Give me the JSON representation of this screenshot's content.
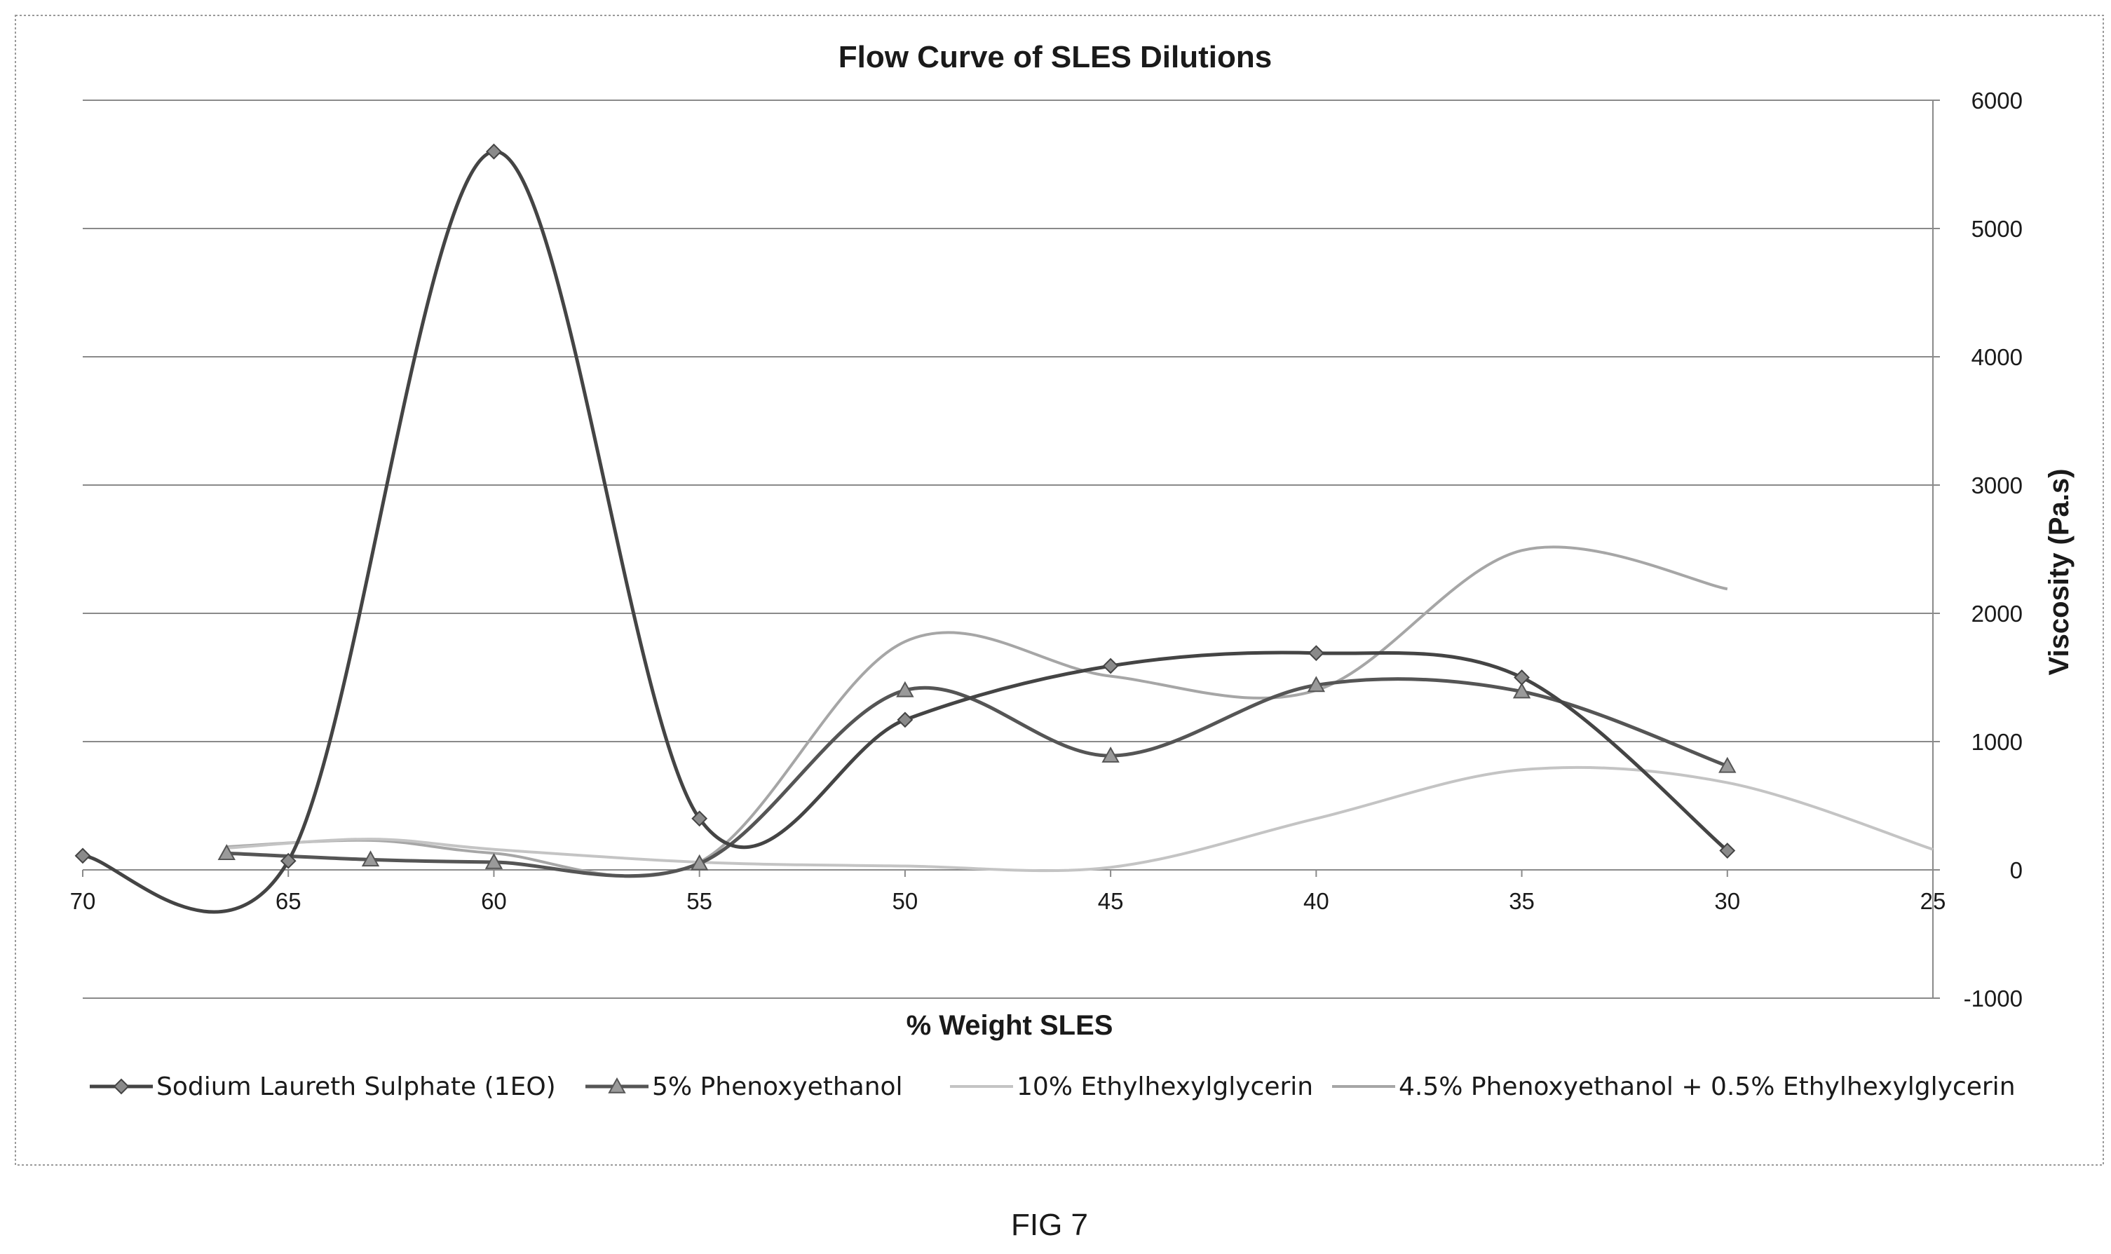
{
  "figure_label": "FIG 7",
  "chart_data": {
    "type": "line",
    "title": "Flow Curve of SLES Dilutions",
    "xlabel": "% Weight SLES",
    "ylabel": "Viscosity (Pa.s)",
    "xlim": [
      70,
      25
    ],
    "x_reversed": true,
    "ylim": [
      -1000,
      6000
    ],
    "y_axis_side": "right",
    "x_ticks": [
      "70",
      "65",
      "60",
      "55",
      "50",
      "45",
      "40",
      "35",
      "30",
      "25"
    ],
    "y_ticks": [
      "-1000",
      "0",
      "1000",
      "2000",
      "3000",
      "4000",
      "5000",
      "6000"
    ],
    "grid": "horizontal",
    "legend_position": "bottom",
    "smoothed": true,
    "series": [
      {
        "name": "Sodium Laureth Sulphate (1EO)",
        "marker": "diamond",
        "color": "#444444",
        "points": [
          [
            70,
            110
          ],
          [
            65,
            70
          ],
          [
            60,
            5600
          ],
          [
            55,
            400
          ],
          [
            50,
            1170
          ],
          [
            45,
            1590
          ],
          [
            40,
            1690
          ],
          [
            35,
            1500
          ],
          [
            30,
            150
          ]
        ]
      },
      {
        "name": "5% Phenoxyethanol",
        "marker": "triangle",
        "color": "#555555",
        "points": [
          [
            66.5,
            130
          ],
          [
            63,
            80
          ],
          [
            60,
            60
          ],
          [
            55,
            50
          ],
          [
            50,
            1400
          ],
          [
            45,
            890
          ],
          [
            40,
            1440
          ],
          [
            35,
            1390
          ],
          [
            30,
            810
          ]
        ]
      },
      {
        "name": "10% Ethylhexylglycerin",
        "marker": "none",
        "color": "#c4c4c4",
        "points": [
          [
            66.5,
            170
          ],
          [
            63,
            240
          ],
          [
            60,
            160
          ],
          [
            55,
            60
          ],
          [
            50,
            30
          ],
          [
            45,
            20
          ],
          [
            40,
            400
          ],
          [
            35,
            780
          ],
          [
            30,
            680
          ],
          [
            25,
            160
          ]
        ]
      },
      {
        "name": "4.5% Phenoxyethanol + 0.5% Ethylhexylglycerin",
        "marker": "none",
        "color": "#a6a6a6",
        "points": [
          [
            66.5,
            180
          ],
          [
            63,
            230
          ],
          [
            60,
            130
          ],
          [
            55,
            60
          ],
          [
            50,
            1780
          ],
          [
            45,
            1510
          ],
          [
            40,
            1400
          ],
          [
            35,
            2490
          ],
          [
            30,
            2190
          ]
        ]
      }
    ]
  }
}
